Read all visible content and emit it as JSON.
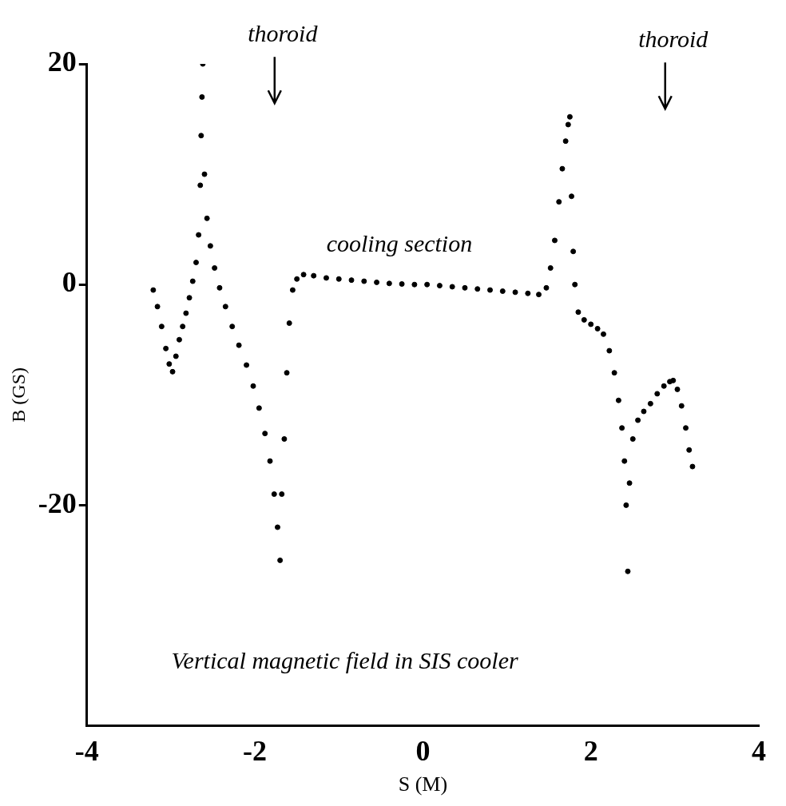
{
  "chart_data": {
    "type": "scatter",
    "x_label": "S (M)",
    "y_label": "B (GS)",
    "xlim": [
      -4,
      4
    ],
    "xticks": [
      -4,
      -2,
      0,
      2,
      4
    ],
    "ylim": [
      -40,
      20
    ],
    "yticks": [
      -20,
      0,
      20
    ],
    "grid": false,
    "color": "#000000",
    "marker": "circle",
    "annotations": [
      {
        "text": "thoroid",
        "x": -1.67,
        "y": 21.5
      },
      {
        "text": "thoroid",
        "x": 2.98,
        "y": 21
      },
      {
        "text": "cooling section",
        "x": -0.28,
        "y": 2.5
      },
      {
        "text": "Vertical magnetic field in SIS cooler",
        "x": -0.93,
        "y": -35.3
      }
    ],
    "x": [
      -3.21,
      -3.16,
      -3.11,
      -3.06,
      -3.02,
      -2.98,
      -2.94,
      -2.9,
      -2.86,
      -2.82,
      -2.78,
      -2.74,
      -2.7,
      -2.67,
      -2.65,
      -2.64,
      -2.63,
      -2.62,
      -2.6,
      -2.57,
      -2.53,
      -2.48,
      -2.42,
      -2.35,
      -2.27,
      -2.19,
      -2.1,
      -2.02,
      -1.95,
      -1.88,
      -1.82,
      -1.77,
      -1.73,
      -1.7,
      -1.68,
      -1.65,
      -1.62,
      -1.59,
      -1.55,
      -1.5,
      -1.42,
      -1.3,
      -1.15,
      -1.0,
      -0.85,
      -0.7,
      -0.55,
      -0.4,
      -0.25,
      -0.1,
      0.05,
      0.2,
      0.35,
      0.5,
      0.65,
      0.8,
      0.95,
      1.1,
      1.25,
      1.38,
      1.47,
      1.52,
      1.57,
      1.62,
      1.66,
      1.7,
      1.73,
      1.75,
      1.77,
      1.79,
      1.81,
      1.85,
      1.92,
      2.0,
      2.08,
      2.15,
      2.22,
      2.28,
      2.33,
      2.37,
      2.4,
      2.42,
      2.44,
      2.46,
      2.5,
      2.56,
      2.63,
      2.71,
      2.79,
      2.87,
      2.94,
      2.98,
      3.03,
      3.08,
      3.13,
      3.17,
      3.21
    ],
    "values": [
      -0.5,
      -2,
      -3.8,
      -5.8,
      -7.2,
      -7.9,
      -6.5,
      -5,
      -3.8,
      -2.6,
      -1.2,
      0.3,
      2,
      4.5,
      9,
      13.5,
      17,
      20,
      10,
      6,
      3.5,
      1.5,
      -0.3,
      -2,
      -3.8,
      -5.5,
      -7.3,
      -9.2,
      -11.2,
      -13.5,
      -16,
      -19,
      -22,
      -25,
      -19,
      -14,
      -8,
      -3.5,
      -0.5,
      0.5,
      0.9,
      0.8,
      0.6,
      0.5,
      0.4,
      0.3,
      0.2,
      0.1,
      0.05,
      0,
      0,
      -0.1,
      -0.2,
      -0.3,
      -0.4,
      -0.5,
      -0.6,
      -0.7,
      -0.8,
      -0.9,
      -0.3,
      1.5,
      4,
      7.5,
      10.5,
      13,
      14.5,
      15.2,
      8,
      3,
      0,
      -2.5,
      -3.2,
      -3.6,
      -4,
      -4.5,
      -6,
      -8,
      -10.5,
      -13,
      -16,
      -20,
      -26,
      -18,
      -14,
      -12.3,
      -11.5,
      -10.8,
      -9.9,
      -9.2,
      -8.8,
      -8.7,
      -9.5,
      -11,
      -13,
      -15,
      -16.5
    ]
  }
}
